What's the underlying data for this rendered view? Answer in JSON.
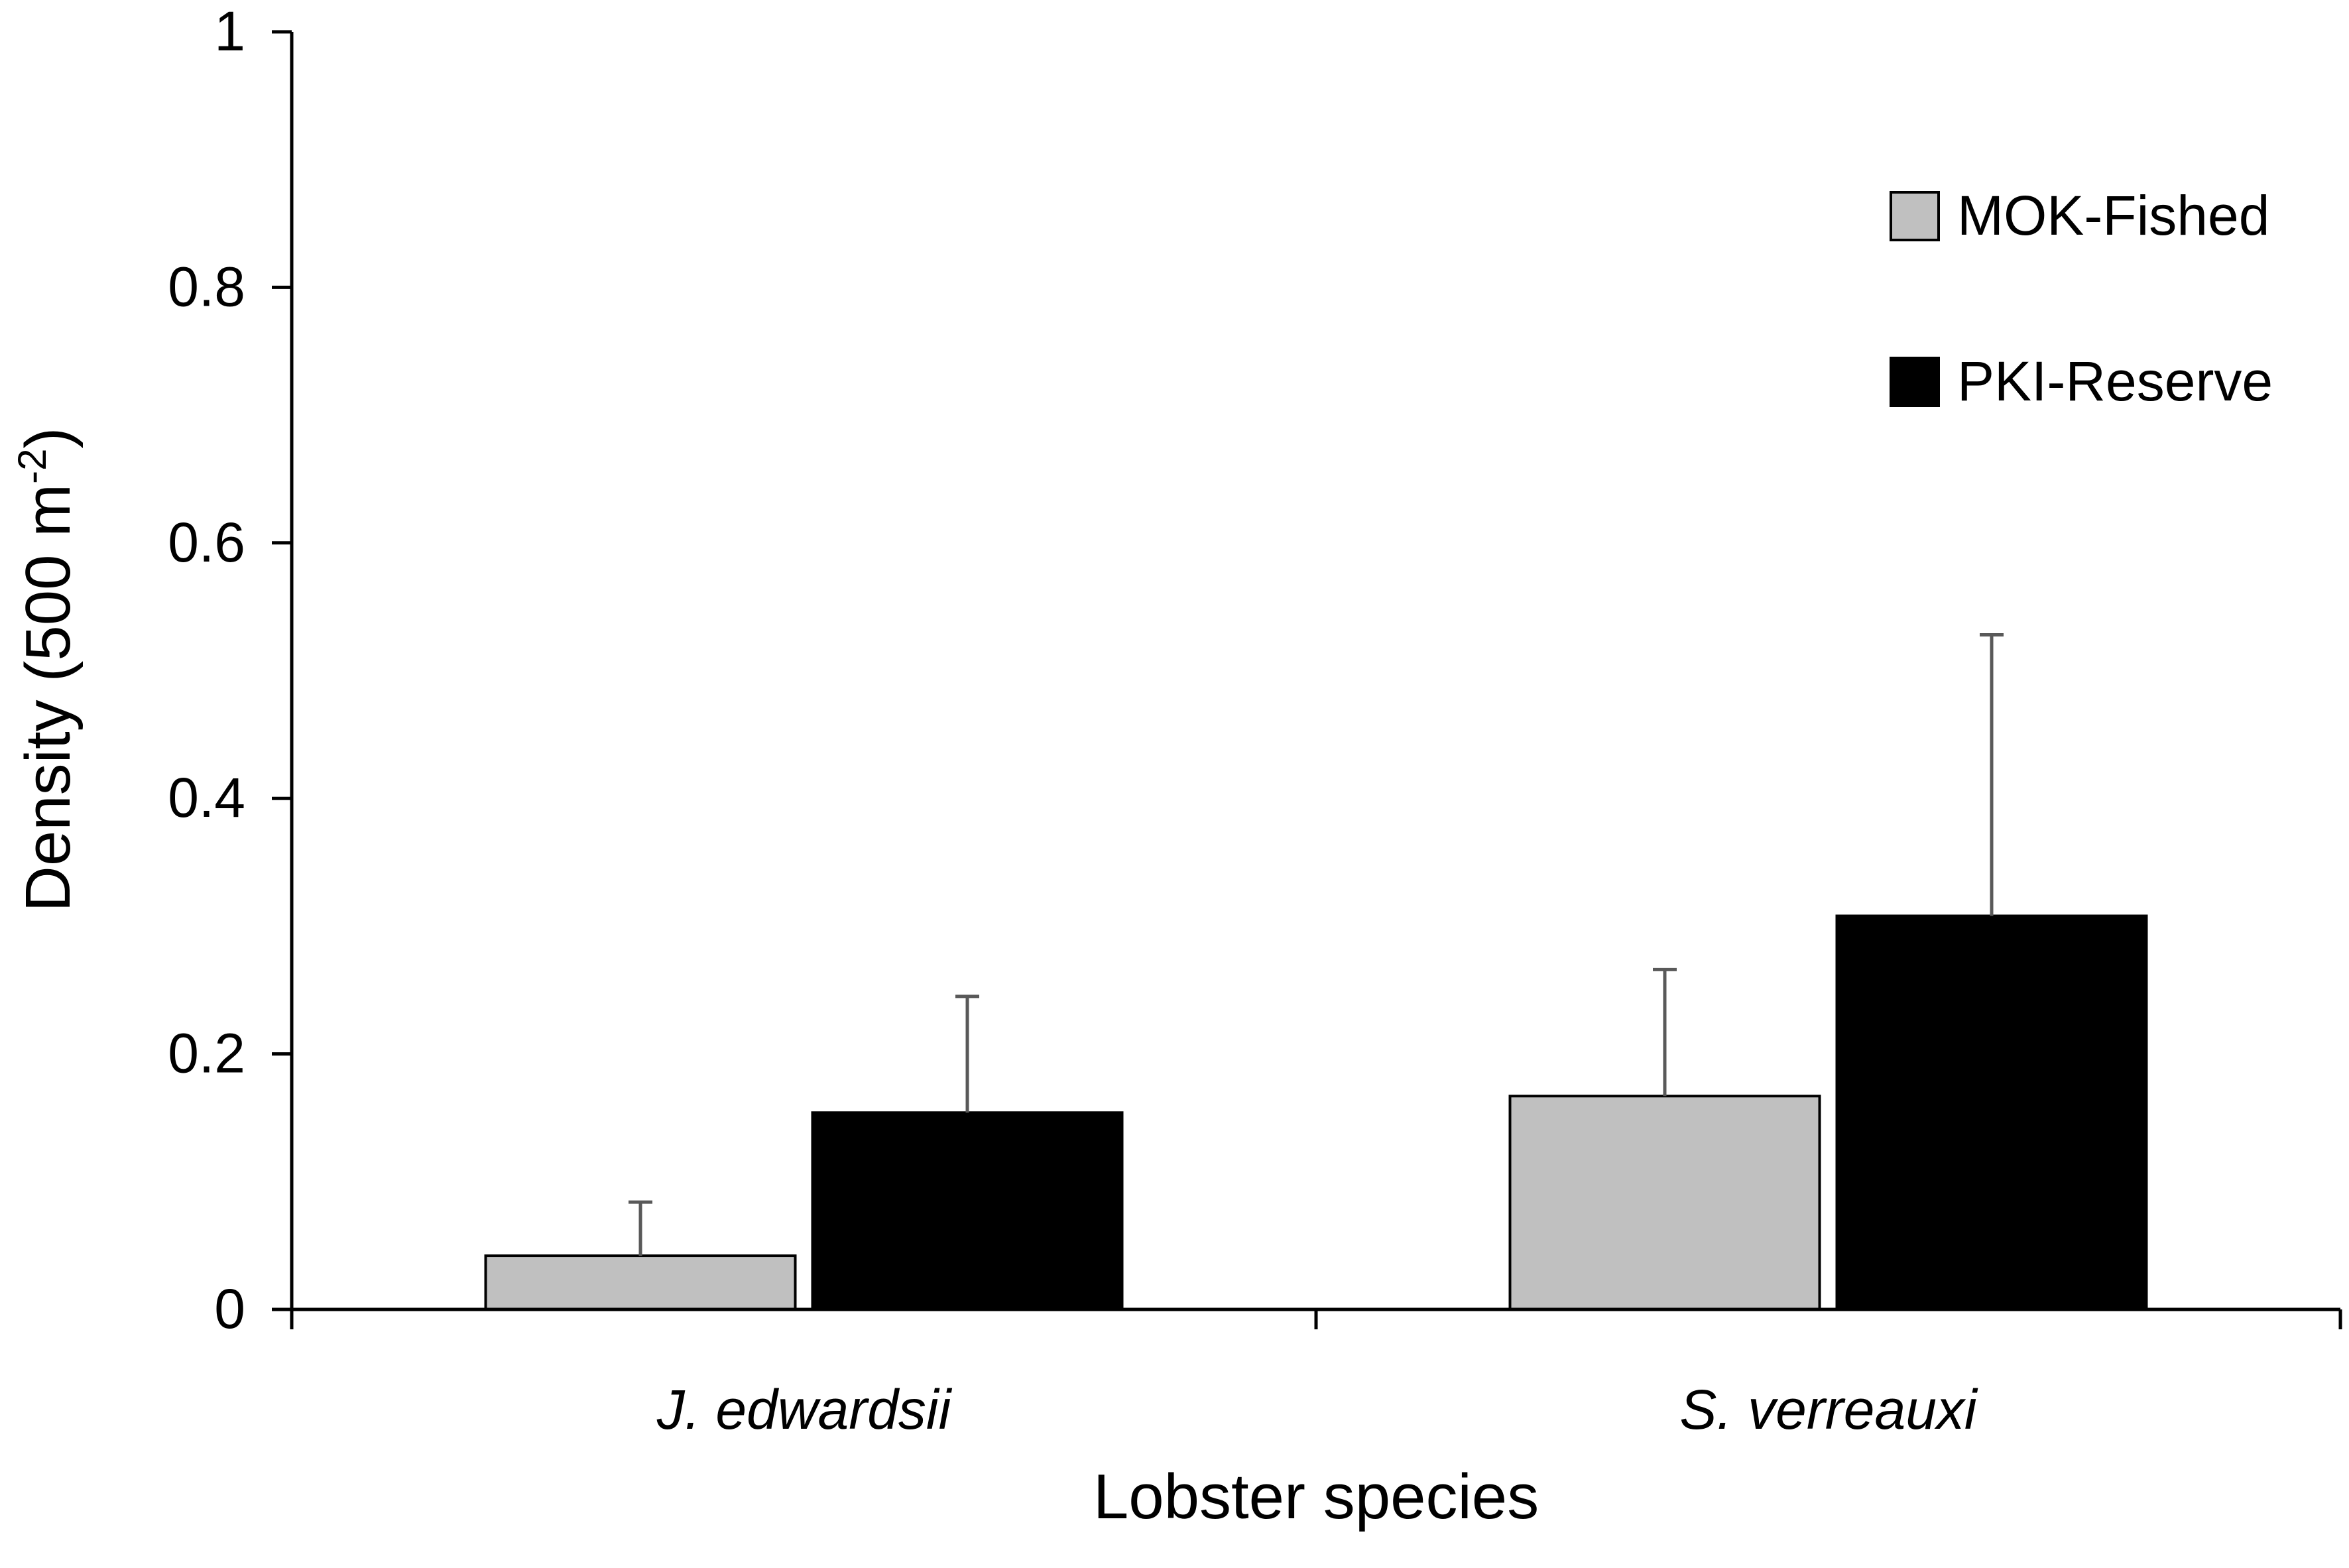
{
  "chart_data": {
    "type": "bar",
    "categories": [
      "J. edwardsii",
      "S. verreauxi"
    ],
    "series": [
      {
        "name": "MOK-Fished",
        "values": [
          0.042,
          0.167
        ],
        "errors": [
          0.042,
          0.099
        ],
        "color": "#c0c0c0"
      },
      {
        "name": "PKI-Reserve",
        "values": [
          0.154,
          0.308
        ],
        "errors": [
          0.091,
          0.22
        ],
        "color": "#000000"
      }
    ],
    "xlabel": "Lobster species",
    "ylabel": "Density (500 m",
    "ylabel_sup": "-2",
    "ylabel_close": ")",
    "ylim": [
      0,
      1
    ],
    "yticks": [
      0,
      0.2,
      0.4,
      0.6,
      0.8,
      1
    ],
    "ytick_labels": [
      "0",
      "0.2",
      "0.4",
      "0.6",
      "0.8",
      "1"
    ],
    "grid": false,
    "legend_position": "top-right",
    "error_bar_color": "#595959"
  }
}
